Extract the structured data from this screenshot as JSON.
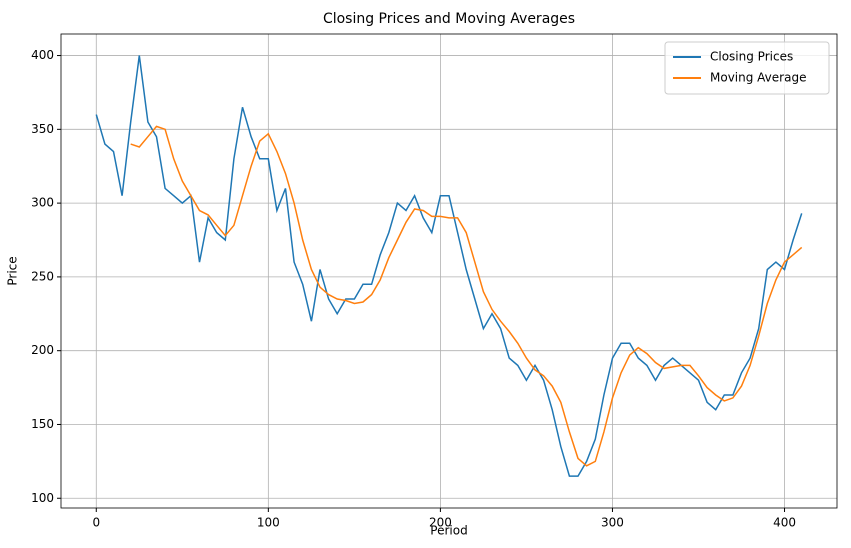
{
  "chart_data": {
    "type": "line",
    "title": "Closing Prices and Moving Averages",
    "x_label": "Period",
    "y_label": "Price",
    "x": [
      0,
      5,
      10,
      15,
      20,
      25,
      30,
      35,
      40,
      45,
      50,
      55,
      60,
      65,
      70,
      75,
      80,
      85,
      90,
      95,
      100,
      105,
      110,
      115,
      120,
      125,
      130,
      135,
      140,
      145,
      150,
      155,
      160,
      165,
      170,
      175,
      180,
      185,
      190,
      195,
      200,
      205,
      210,
      215,
      220,
      225,
      230,
      235,
      240,
      245,
      250,
      255,
      260,
      265,
      270,
      275,
      280,
      285,
      290,
      295,
      300,
      305,
      310,
      315,
      320,
      325,
      330,
      335,
      340,
      345,
      350,
      355,
      360,
      365,
      370,
      375,
      380,
      385,
      390,
      395,
      400,
      405,
      410
    ],
    "series": [
      {
        "name": "Closing Prices",
        "color": "#1f77b4",
        "values": [
          360,
          340,
          335,
          305,
          355,
          400,
          355,
          345,
          310,
          305,
          300,
          305,
          260,
          290,
          280,
          275,
          330,
          365,
          345,
          330,
          330,
          295,
          310,
          260,
          245,
          220,
          255,
          235,
          225,
          235,
          235,
          245,
          245,
          265,
          280,
          300,
          295,
          305,
          290,
          280,
          305,
          305,
          280,
          255,
          235,
          215,
          225,
          215,
          195,
          190,
          180,
          190,
          180,
          160,
          135,
          115,
          115,
          125,
          140,
          170,
          195,
          205,
          205,
          195,
          190,
          180,
          190,
          195,
          190,
          185,
          180,
          165,
          160,
          170,
          170,
          185,
          195,
          215,
          255,
          260,
          255,
          275,
          293
        ]
      },
      {
        "name": "Moving Average",
        "color": "#ff7f0e",
        "values": [
          null,
          null,
          null,
          null,
          340,
          338,
          345,
          352,
          350,
          330,
          315,
          305,
          295,
          292,
          285,
          278,
          285,
          305,
          325,
          342,
          347,
          335,
          320,
          300,
          275,
          255,
          243,
          238,
          235,
          234,
          232,
          233,
          238,
          248,
          263,
          275,
          287,
          296,
          295,
          291,
          291,
          290,
          290,
          280,
          260,
          240,
          228,
          220,
          213,
          205,
          195,
          187,
          183,
          176,
          165,
          145,
          127,
          122,
          125,
          145,
          168,
          185,
          197,
          202,
          198,
          192,
          188,
          189,
          190,
          190,
          183,
          175,
          170,
          166,
          168,
          176,
          190,
          210,
          232,
          248,
          260,
          265,
          270
        ]
      }
    ],
    "xlim": [
      -20.5,
      430.5
    ],
    "xticks": [
      0,
      100,
      200,
      300,
      400
    ],
    "ylim": [
      93.4,
      414.6
    ],
    "yticks": [
      100,
      150,
      200,
      250,
      300,
      350,
      400
    ],
    "grid": true,
    "legend": "upper right"
  }
}
